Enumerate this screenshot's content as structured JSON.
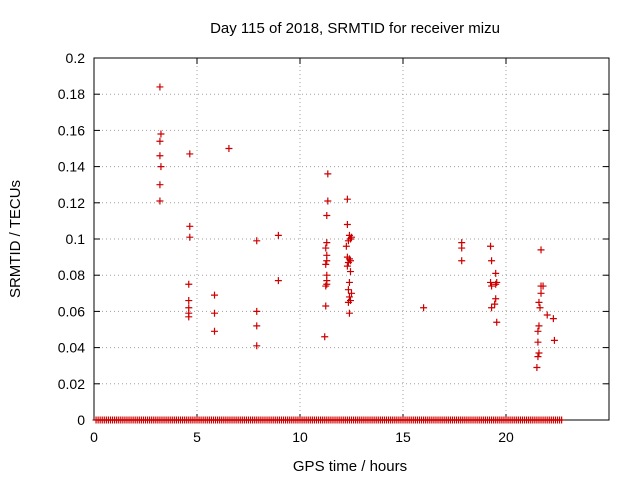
{
  "chart_data": {
    "type": "scatter",
    "title": "Day 115 of 2018, SRMTID for receiver mizu",
    "xlabel": "GPS time / hours",
    "ylabel": "SRMTID / TECUs",
    "xlim": [
      0,
      25
    ],
    "ylim": [
      0,
      0.2
    ],
    "xticks": [
      0,
      5,
      10,
      15,
      20
    ],
    "xtick_labels": [
      "0",
      "5",
      "10",
      "15",
      "20"
    ],
    "yticks": [
      0,
      0.02,
      0.04,
      0.06,
      0.08,
      0.1,
      0.12,
      0.14,
      0.16,
      0.18,
      0.2
    ],
    "ytick_labels": [
      "0",
      "0.02",
      "0.04",
      "0.06",
      "0.08",
      "0.1",
      "0.12",
      "0.14",
      "0.16",
      "0.18",
      "0.2"
    ],
    "grid": true,
    "marker": "+",
    "marker_color": "#cc0000",
    "series": [
      {
        "name": "SRMTID",
        "points": [
          [
            3.2,
            0.184
          ],
          [
            3.25,
            0.158
          ],
          [
            3.2,
            0.154
          ],
          [
            3.2,
            0.146
          ],
          [
            3.25,
            0.14
          ],
          [
            3.2,
            0.13
          ],
          [
            3.2,
            0.121
          ],
          [
            4.65,
            0.147
          ],
          [
            4.65,
            0.107
          ],
          [
            4.65,
            0.101
          ],
          [
            4.6,
            0.075
          ],
          [
            4.6,
            0.066
          ],
          [
            4.6,
            0.062
          ],
          [
            4.6,
            0.059
          ],
          [
            4.6,
            0.057
          ],
          [
            5.85,
            0.069
          ],
          [
            5.85,
            0.059
          ],
          [
            5.85,
            0.049
          ],
          [
            6.55,
            0.15
          ],
          [
            7.9,
            0.099
          ],
          [
            7.9,
            0.06
          ],
          [
            7.9,
            0.052
          ],
          [
            7.9,
            0.041
          ],
          [
            8.95,
            0.102
          ],
          [
            8.95,
            0.077
          ],
          [
            11.35,
            0.136
          ],
          [
            11.35,
            0.121
          ],
          [
            11.3,
            0.113
          ],
          [
            11.3,
            0.098
          ],
          [
            11.25,
            0.095
          ],
          [
            11.3,
            0.091
          ],
          [
            11.3,
            0.088
          ],
          [
            11.25,
            0.086
          ],
          [
            11.3,
            0.08
          ],
          [
            11.3,
            0.077
          ],
          [
            11.3,
            0.075
          ],
          [
            11.25,
            0.074
          ],
          [
            11.25,
            0.063
          ],
          [
            11.2,
            0.046
          ],
          [
            12.3,
            0.122
          ],
          [
            12.3,
            0.108
          ],
          [
            12.4,
            0.102
          ],
          [
            12.45,
            0.1
          ],
          [
            12.35,
            0.099
          ],
          [
            12.5,
            0.101
          ],
          [
            12.25,
            0.096
          ],
          [
            12.3,
            0.09
          ],
          [
            12.4,
            0.089
          ],
          [
            12.45,
            0.088
          ],
          [
            12.35,
            0.087
          ],
          [
            12.3,
            0.085
          ],
          [
            12.45,
            0.082
          ],
          [
            12.4,
            0.076
          ],
          [
            12.35,
            0.072
          ],
          [
            12.5,
            0.07
          ],
          [
            12.4,
            0.068
          ],
          [
            12.45,
            0.066
          ],
          [
            12.35,
            0.065
          ],
          [
            12.4,
            0.059
          ],
          [
            16.0,
            0.062
          ],
          [
            17.85,
            0.098
          ],
          [
            17.85,
            0.095
          ],
          [
            17.85,
            0.088
          ],
          [
            19.25,
            0.096
          ],
          [
            19.3,
            0.088
          ],
          [
            19.25,
            0.076
          ],
          [
            19.3,
            0.074
          ],
          [
            19.5,
            0.075
          ],
          [
            19.55,
            0.076
          ],
          [
            19.5,
            0.081
          ],
          [
            19.5,
            0.067
          ],
          [
            19.45,
            0.064
          ],
          [
            19.3,
            0.062
          ],
          [
            19.55,
            0.054
          ],
          [
            21.7,
            0.094
          ],
          [
            21.7,
            0.074
          ],
          [
            21.8,
            0.074
          ],
          [
            21.7,
            0.07
          ],
          [
            21.6,
            0.065
          ],
          [
            21.65,
            0.062
          ],
          [
            21.6,
            0.052
          ],
          [
            21.55,
            0.049
          ],
          [
            21.55,
            0.043
          ],
          [
            21.6,
            0.037
          ],
          [
            21.55,
            0.035
          ],
          [
            21.5,
            0.029
          ],
          [
            22.0,
            0.058
          ],
          [
            22.3,
            0.056
          ],
          [
            22.35,
            0.044
          ]
        ],
        "zero_baseline": {
          "y": 0,
          "x_start": 0.1,
          "x_end": 22.7,
          "step": 0.1
        }
      }
    ]
  }
}
